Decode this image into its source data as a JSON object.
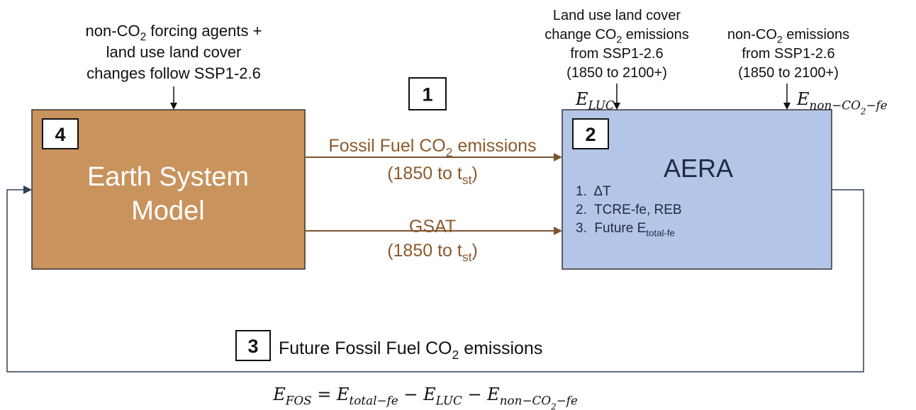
{
  "annotations": {
    "forcing": {
      "lines": [
        [
          {
            "text": "non-CO"
          },
          {
            "text": "2",
            "level": 1
          },
          {
            "text": " forcing agents +"
          }
        ],
        [
          {
            "text": "land use land cover"
          }
        ],
        [
          {
            "text": "changes follow SSP1-2.6"
          }
        ]
      ]
    },
    "luc": {
      "lines": [
        [
          {
            "text": "Land use land cover"
          }
        ],
        [
          {
            "text": "change CO"
          },
          {
            "text": "2",
            "level": 1
          },
          {
            "text": " emissions"
          }
        ],
        [
          {
            "text": "from SSP1-2.6"
          }
        ],
        [
          {
            "text": "(1850 to 2100+)"
          }
        ]
      ]
    },
    "non_co2": {
      "lines": [
        [
          {
            "text": "non-CO"
          },
          {
            "text": "2",
            "level": 1
          },
          {
            "text": " emissions"
          }
        ],
        [
          {
            "text": "from SSP1-2.6"
          }
        ],
        [
          {
            "text": "(1850 to 2100+)"
          }
        ]
      ]
    }
  },
  "symbols": {
    "e_luc": [
      {
        "text": "E"
      },
      {
        "text": "LUC",
        "level": 1
      }
    ],
    "e_non_co2_fe": [
      {
        "text": "E"
      },
      {
        "text": "non−CO",
        "level": 1
      },
      {
        "text": "2",
        "level": 2
      },
      {
        "text": "−fe",
        "level": 1
      }
    ]
  },
  "boxes": {
    "esm": {
      "number": "4",
      "lines": [
        [
          {
            "text": "Earth System"
          }
        ],
        [
          {
            "text": "Model"
          }
        ]
      ]
    },
    "aera": {
      "number": "2",
      "title": "AERA",
      "items": [
        [
          {
            "text": "1.  ΔT"
          }
        ],
        [
          {
            "text": "2.  TCRE-fe, REB"
          }
        ],
        [
          {
            "text": "3.  Future E"
          },
          {
            "text": "total-fe",
            "level": 1
          }
        ]
      ]
    }
  },
  "flows": {
    "step_number": "1",
    "fossil": {
      "lines": [
        [
          {
            "text": "Fossil Fuel CO"
          },
          {
            "text": "2",
            "level": 1
          },
          {
            "text": " emissions"
          }
        ],
        [
          {
            "text": "(1850 to t"
          },
          {
            "text": "st",
            "level": 1
          },
          {
            "text": ")"
          }
        ]
      ]
    },
    "gsat": {
      "lines": [
        [
          {
            "text": "GSAT"
          }
        ],
        [
          {
            "text": "(1850 to t"
          },
          {
            "text": "st",
            "level": 1
          },
          {
            "text": ")"
          }
        ]
      ]
    }
  },
  "feedback": {
    "number": "3",
    "lines": [
      [
        {
          "text": "Future Fossil Fuel CO"
        },
        {
          "text": "2",
          "level": 1
        },
        {
          "text": " emissions"
        }
      ]
    ]
  },
  "equation": [
    {
      "text": "E"
    },
    {
      "text": "FOS",
      "level": 1
    },
    {
      "text": " = E"
    },
    {
      "text": "total−fe",
      "level": 1
    },
    {
      "text": " − E"
    },
    {
      "text": "LUC",
      "level": 1
    },
    {
      "text": " − E"
    },
    {
      "text": "non−CO",
      "level": 1
    },
    {
      "text": "2",
      "level": 2
    },
    {
      "text": "−fe",
      "level": 1
    }
  ]
}
